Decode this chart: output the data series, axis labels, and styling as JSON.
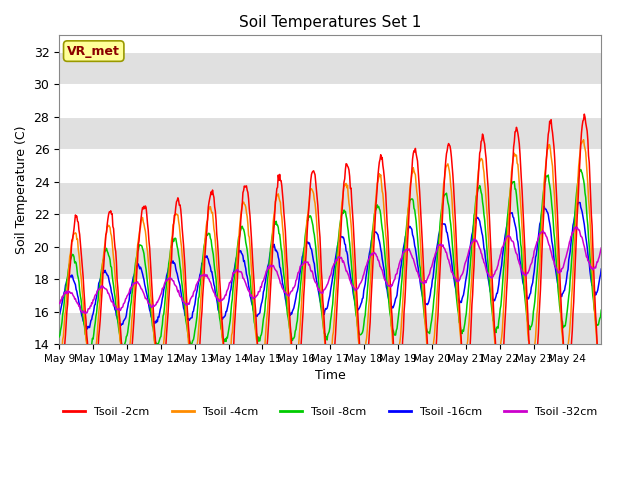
{
  "title": "Soil Temperatures Set 1",
  "xlabel": "Time",
  "ylabel": "Soil Temperature (C)",
  "ylim": [
    14,
    33
  ],
  "yticks": [
    14,
    16,
    18,
    20,
    22,
    24,
    26,
    28,
    30,
    32
  ],
  "xtick_labels": [
    "May 9",
    "May 10",
    "May 11",
    "May 12",
    "May 13",
    "May 14",
    "May 15",
    "May 16",
    "May 17",
    "May 18",
    "May 19",
    "May 20",
    "May 21",
    "May 22",
    "May 23",
    "May 24"
  ],
  "annotation_text": "VR_met",
  "annotation_color": "#8B0000",
  "annotation_bg": "#FFFF99",
  "annotation_edge": "#999900",
  "bg_band_color": "#E0E0E0",
  "series_colors": [
    "#FF0000",
    "#FF8C00",
    "#00CC00",
    "#0000FF",
    "#CC00CC"
  ],
  "series_labels": [
    "Tsoil -2cm",
    "Tsoil -4cm",
    "Tsoil -8cm",
    "Tsoil -16cm",
    "Tsoil -32cm"
  ],
  "n_days": 16,
  "points_per_day": 48
}
